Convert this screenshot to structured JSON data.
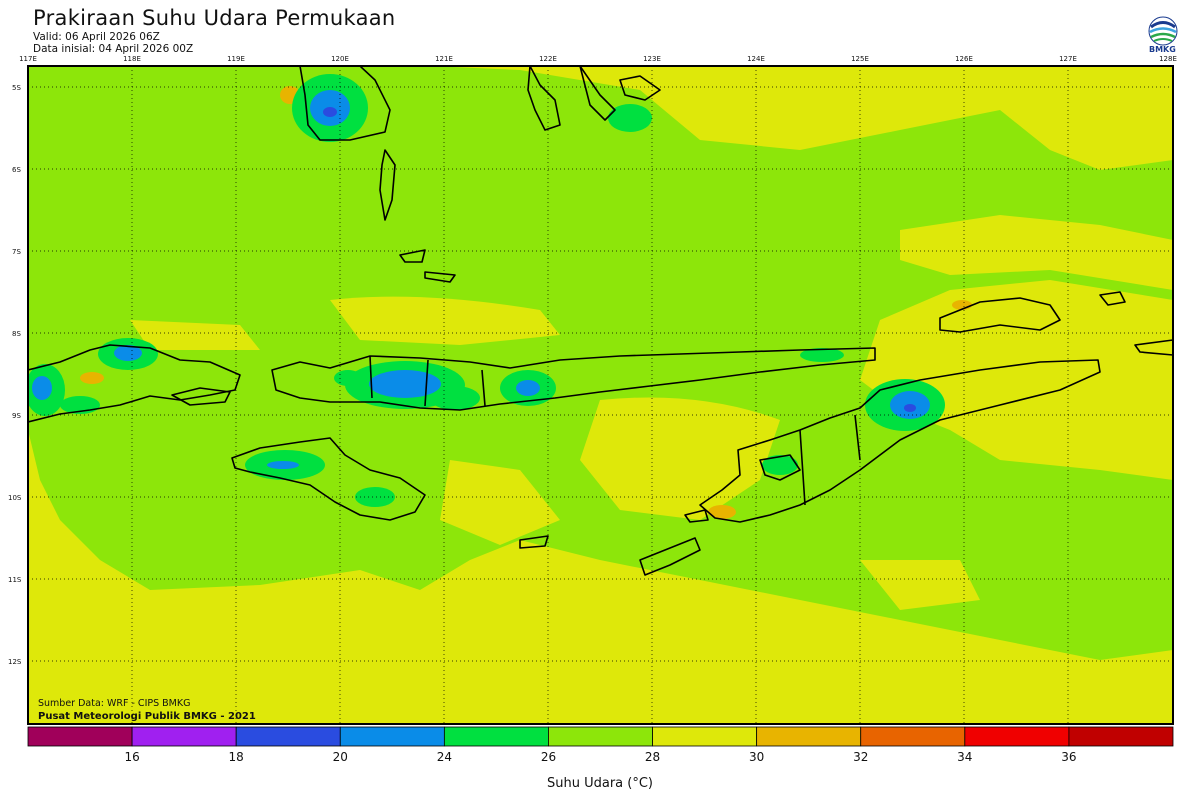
{
  "header": {
    "title": "Prakiraan Suhu Udara Permukaan",
    "valid": "Valid: 06 April 2026 06Z",
    "initial": "Data inisial: 04 April 2026 00Z"
  },
  "logo": {
    "text": "BMKG",
    "icon": "bmkg-logo-icon"
  },
  "map": {
    "lon_labels": [
      "117E",
      "118E",
      "119E",
      "120E",
      "121E",
      "122E",
      "123E",
      "124E",
      "125E",
      "126E",
      "127E",
      "128E"
    ],
    "lat_labels": [
      "5S",
      "6S",
      "7S",
      "8S",
      "9S",
      "10S",
      "11S",
      "12S"
    ],
    "background_color": "#8de60a",
    "source": "Sumber Data: WRF - CIPS BMKG",
    "credit": "Pusat Meteorologi Publik BMKG - 2021"
  },
  "colorbar": {
    "label": "Suhu Udara (°C)",
    "ticks": [
      "16",
      "18",
      "20",
      "24",
      "26",
      "28",
      "30",
      "32",
      "34",
      "36"
    ],
    "colors": [
      "#a0005a",
      "#a020f0",
      "#2a4ce0",
      "#0a8ce8",
      "#00e040",
      "#8de60a",
      "#dee80a",
      "#e8b400",
      "#e86400",
      "#f00000",
      "#c00000"
    ]
  }
}
